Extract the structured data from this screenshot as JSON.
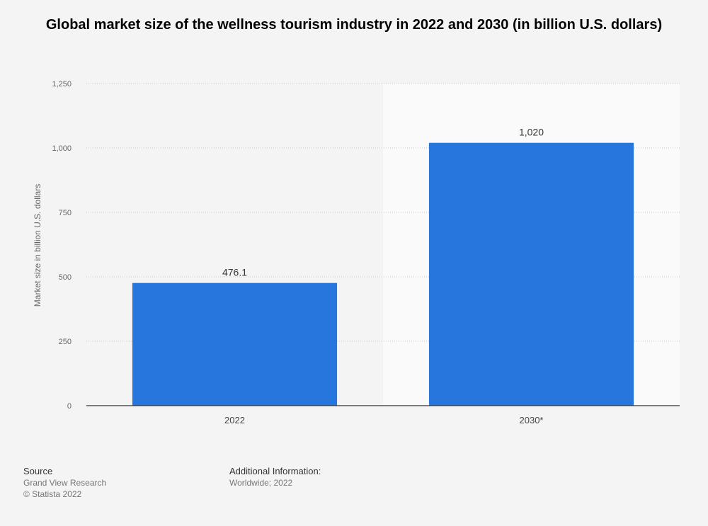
{
  "title": "Global market size of the wellness tourism industry in 2022 and 2030 (in billion U.S. dollars)",
  "chart_data": {
    "type": "bar",
    "categories": [
      "2022",
      "2030*"
    ],
    "values": [
      476.1,
      1020
    ],
    "value_labels": [
      "476.1",
      "1,020"
    ],
    "ylabel": "Market size in billion U.S. dollars",
    "xlabel": "",
    "ylim": [
      0,
      1250
    ],
    "yticks": [
      0,
      250,
      500,
      750,
      1000,
      1250
    ],
    "ytick_labels": [
      "0",
      "250",
      "500",
      "750",
      "1,000",
      "1,250"
    ],
    "highlighted_category": "2030*",
    "grid": true,
    "bar_color": "#2776dd",
    "highlight_band_color": "#fafafa"
  },
  "footer": {
    "source_heading": "Source",
    "source_lines": [
      "Grand View Research",
      "© Statista 2022"
    ],
    "info_heading": "Additional Information:",
    "info_lines": [
      "Worldwide; 2022"
    ]
  }
}
